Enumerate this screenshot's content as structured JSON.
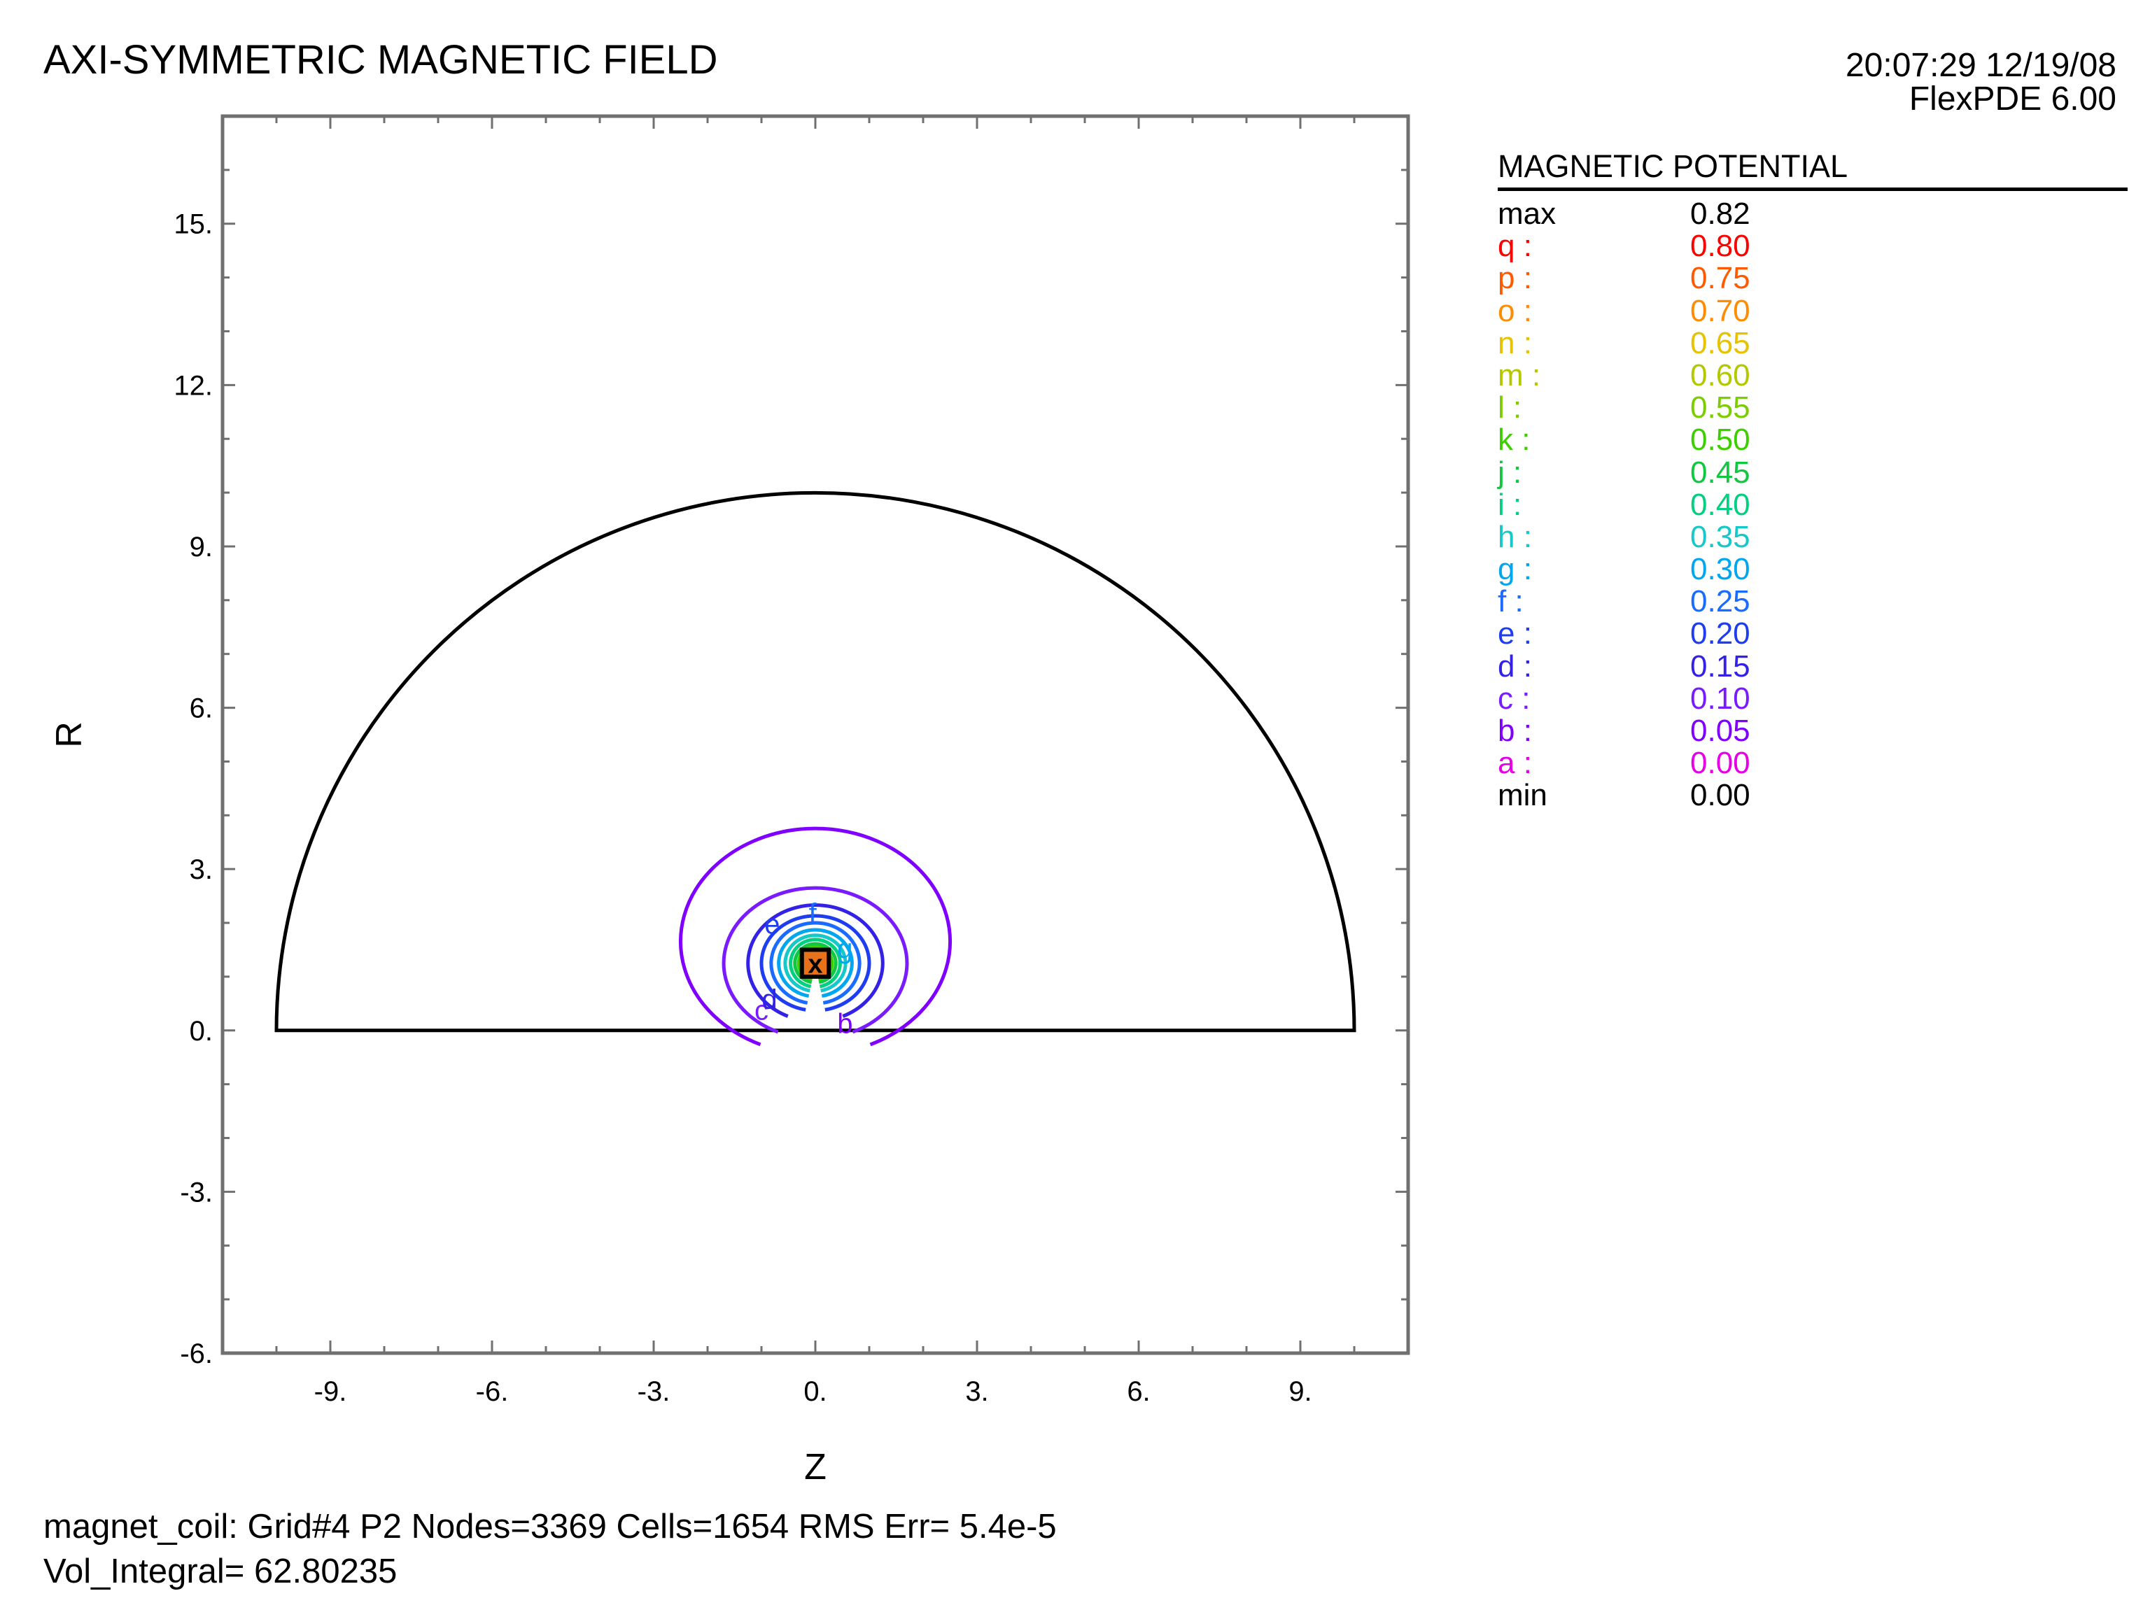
{
  "header": {
    "title": "AXI-SYMMETRIC MAGNETIC FIELD",
    "time": "20:07:29 12/19/08",
    "software": "FlexPDE 6.00"
  },
  "chart_data": {
    "type": "contour",
    "title": "AXI-SYMMETRIC MAGNETIC FIELD",
    "xlabel": "Z",
    "ylabel": "R",
    "xlim": [
      -11,
      11
    ],
    "ylim": [
      -6,
      17
    ],
    "x_ticks": [
      "-9.",
      "-6.",
      "-3.",
      "0.",
      "3.",
      "6.",
      "9."
    ],
    "y_ticks": [
      "-6.",
      "-3.",
      "0.",
      "3.",
      "6.",
      "9.",
      "12.",
      "15."
    ],
    "domain_boundary": {
      "shape": "half-disk",
      "center": [
        0,
        0
      ],
      "radius": 10
    },
    "coil": {
      "z": [
        -0.25,
        0.25
      ],
      "r": [
        1.0,
        1.5
      ],
      "marker": "x"
    },
    "contours": [
      {
        "label": "b",
        "level": 0.05,
        "color": "#8000ff",
        "rz": 2.5,
        "rr": 2.1
      },
      {
        "label": "c",
        "level": 0.1,
        "color": "#7a1bff",
        "rz": 1.7,
        "rr": 1.4
      },
      {
        "label": "d",
        "level": 0.15,
        "color": "#3322e6",
        "rz": 1.25,
        "rr": 1.08
      },
      {
        "label": "e",
        "level": 0.2,
        "color": "#1f3df0",
        "rz": 1.0,
        "rr": 0.88
      },
      {
        "label": "f",
        "level": 0.25,
        "color": "#1a6bff",
        "rz": 0.82,
        "rr": 0.75
      },
      {
        "label": "g",
        "level": 0.3,
        "color": "#00a6ee",
        "rz": 0.68,
        "rr": 0.62
      },
      {
        "label": "h",
        "level": 0.35,
        "color": "#16c8c8",
        "rz": 0.56,
        "rr": 0.52
      },
      {
        "label": "i",
        "level": 0.4,
        "color": "#00d080",
        "rz": 0.46,
        "rr": 0.44
      },
      {
        "label": "j",
        "level": 0.45,
        "color": "#10c840",
        "rz": 0.38,
        "rr": 0.36
      },
      {
        "label": "k",
        "level": 0.5,
        "color": "#3ccf00",
        "rz": 0.31,
        "rr": 0.3
      },
      {
        "label": "l",
        "level": 0.55,
        "color": "#7ccd00",
        "rz": 0.25,
        "rr": 0.25
      }
    ],
    "contour_labels_shown": [
      "b",
      "c",
      "d",
      "e",
      "f",
      "g"
    ]
  },
  "legend": {
    "title": "MAGNETIC POTENTIAL",
    "rows": [
      {
        "label": "max",
        "value": "0.82",
        "color": "#000000"
      },
      {
        "label": "q :",
        "value": "0.80",
        "color": "#ff0000"
      },
      {
        "label": "p :",
        "value": "0.75",
        "color": "#ff5a00"
      },
      {
        "label": "o :",
        "value": "0.70",
        "color": "#ff8c00"
      },
      {
        "label": "n :",
        "value": "0.65",
        "color": "#e6c200"
      },
      {
        "label": "m :",
        "value": "0.60",
        "color": "#b4c800"
      },
      {
        "label": "l :",
        "value": "0.55",
        "color": "#7ccd00"
      },
      {
        "label": "k :",
        "value": "0.50",
        "color": "#3ccf00"
      },
      {
        "label": "j :",
        "value": "0.45",
        "color": "#10c840"
      },
      {
        "label": "i :",
        "value": "0.40",
        "color": "#00d080"
      },
      {
        "label": "h :",
        "value": "0.35",
        "color": "#16c8c8"
      },
      {
        "label": "g :",
        "value": "0.30",
        "color": "#00a6ee"
      },
      {
        "label": "f :",
        "value": "0.25",
        "color": "#1a6bff"
      },
      {
        "label": "e :",
        "value": "0.20",
        "color": "#1f3df0"
      },
      {
        "label": "d :",
        "value": "0.15",
        "color": "#3322e6"
      },
      {
        "label": "c :",
        "value": "0.10",
        "color": "#7a1bff"
      },
      {
        "label": "b :",
        "value": "0.05",
        "color": "#8000ff"
      },
      {
        "label": "a :",
        "value": "0.00",
        "color": "#e600e6"
      },
      {
        "label": "min",
        "value": "0.00",
        "color": "#000000"
      }
    ]
  },
  "footer": {
    "line1": "magnet_coil:  Grid#4  P2  Nodes=3369 Cells=1654 RMS Err= 5.4e-5",
    "line2": "Vol_Integral=  62.80235"
  }
}
